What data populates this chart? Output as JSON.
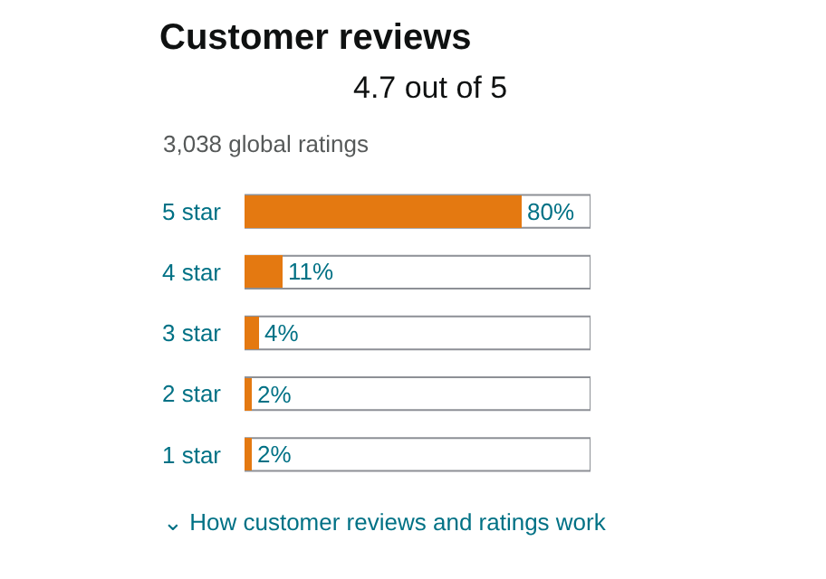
{
  "chart_data": {
    "type": "bar",
    "orientation": "horizontal",
    "title": "Customer reviews",
    "subtitle": "4.7 out of 5",
    "categories": [
      "5 star",
      "4 star",
      "3 star",
      "2 star",
      "1 star"
    ],
    "values": [
      80,
      11,
      4,
      2,
      2
    ],
    "value_labels": [
      "80%",
      "11%",
      "4%",
      "2%",
      "2%"
    ],
    "color": "#e47911",
    "xlim": [
      0,
      100
    ],
    "tick_labels": "y",
    "grid": false,
    "legend": false,
    "annotations": [
      "3,038 global ratings",
      "⌄ How customer reviews and ratings work"
    ]
  }
}
